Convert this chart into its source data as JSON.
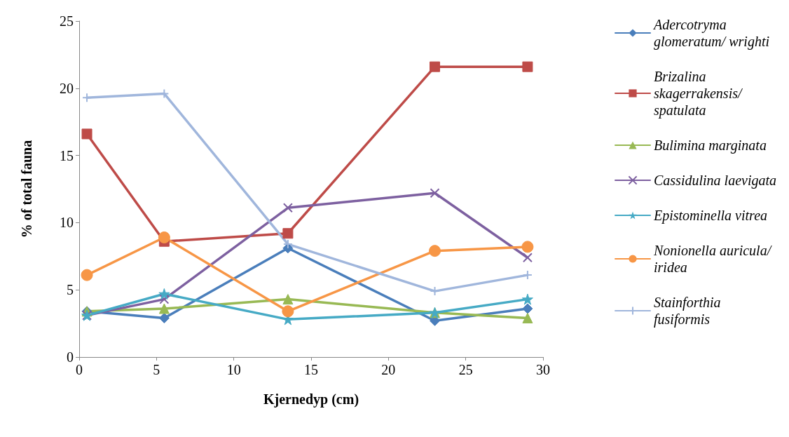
{
  "chart_data": {
    "type": "line",
    "xlabel": "Kjernedyp (cm)",
    "ylabel": "% of total fauna",
    "x": [
      0.5,
      5.5,
      13.5,
      23,
      29
    ],
    "xlim": [
      0,
      30
    ],
    "xticks": [
      0,
      5,
      10,
      15,
      20,
      25,
      30
    ],
    "ylim": [
      0,
      25
    ],
    "yticks": [
      0,
      5,
      10,
      15,
      20,
      25
    ],
    "grid": false,
    "legend": "right",
    "line_style": "solid",
    "series": [
      {
        "name": "Adercotryma glomeratum/ wrighti",
        "color": "#4a7ebb",
        "marker": "diamond",
        "values": [
          3.4,
          2.9,
          8.1,
          2.7,
          3.6
        ]
      },
      {
        "name": "Brizalina skagerrakensis/ spatulata",
        "color": "#be4b48",
        "marker": "square",
        "values": [
          16.6,
          8.6,
          9.2,
          21.6,
          21.6
        ]
      },
      {
        "name": "Bulimina marginata",
        "color": "#98b954",
        "marker": "triangle",
        "values": [
          3.4,
          3.6,
          4.3,
          3.3,
          2.9
        ]
      },
      {
        "name": "Cassidulina laevigata",
        "color": "#7d60a0",
        "marker": "cross",
        "values": [
          3.1,
          4.3,
          11.1,
          12.2,
          7.4
        ]
      },
      {
        "name": "Epistominella vitrea",
        "color": "#46aac5",
        "marker": "star",
        "values": [
          3.1,
          4.7,
          2.8,
          3.3,
          4.3
        ]
      },
      {
        "name": "Nonionella auricula/iridea",
        "color": "#f79646",
        "marker": "circle",
        "values": [
          6.1,
          8.9,
          3.4,
          7.9,
          8.2
        ]
      },
      {
        "name": "Stainforthia fusiformis",
        "color": "#a0b6dc",
        "marker": "plus",
        "values": [
          19.3,
          19.6,
          8.4,
          4.9,
          6.1
        ]
      }
    ]
  }
}
